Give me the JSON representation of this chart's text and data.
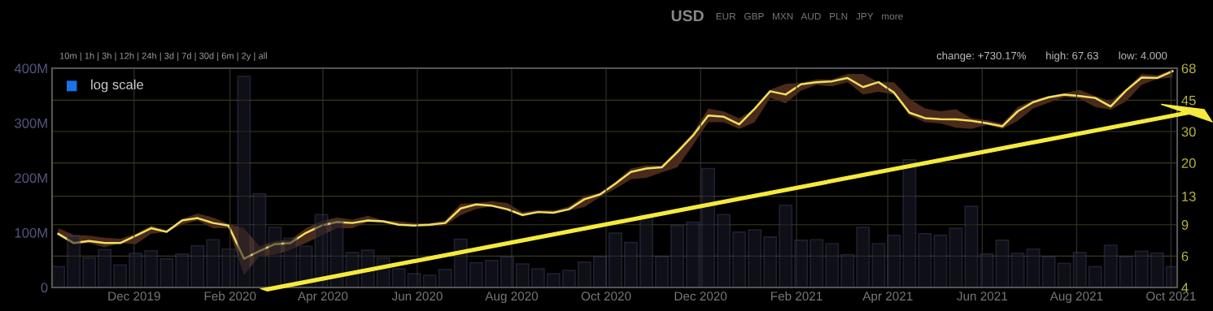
{
  "chart_data": {
    "type": "bar",
    "x": [
      "2019-10-13",
      "2019-10-23",
      "2019-11-02",
      "2019-11-12",
      "2019-11-22",
      "2019-12-02",
      "2019-12-12",
      "2019-12-22",
      "2020-01-01",
      "2020-01-11",
      "2020-01-21",
      "2020-01-31",
      "2020-02-10",
      "2020-02-20",
      "2020-03-01",
      "2020-03-11",
      "2020-03-21",
      "2020-03-31",
      "2020-04-10",
      "2020-04-20",
      "2020-04-30",
      "2020-05-10",
      "2020-05-20",
      "2020-05-30",
      "2020-06-09",
      "2020-06-19",
      "2020-06-29",
      "2020-07-09",
      "2020-07-19",
      "2020-07-29",
      "2020-08-08",
      "2020-08-18",
      "2020-08-28",
      "2020-09-07",
      "2020-09-17",
      "2020-09-27",
      "2020-10-07",
      "2020-10-17",
      "2020-10-27",
      "2020-11-06",
      "2020-11-16",
      "2020-11-26",
      "2020-12-06",
      "2020-12-16",
      "2020-12-26",
      "2021-01-05",
      "2021-01-15",
      "2021-01-25",
      "2021-02-04",
      "2021-02-14",
      "2021-02-24",
      "2021-03-06",
      "2021-03-16",
      "2021-03-26",
      "2021-04-05",
      "2021-04-15",
      "2021-04-25",
      "2021-05-05",
      "2021-05-15",
      "2021-05-25",
      "2021-06-04",
      "2021-06-14",
      "2021-06-24",
      "2021-07-04",
      "2021-07-14",
      "2021-07-24",
      "2021-08-03",
      "2021-08-13",
      "2021-08-23",
      "2021-09-02",
      "2021-09-12",
      "2021-09-22",
      "2021-10-02"
    ],
    "series": [
      {
        "color": "#1c1c2c",
        "values": [
          38,
          94,
          54,
          69,
          41,
          62,
          67,
          52,
          61,
          76,
          87,
          70,
          385,
          171,
          110,
          90,
          75,
          133,
          121,
          64,
          68,
          54,
          34,
          25,
          22,
          33,
          88,
          45,
          49,
          56,
          43,
          34,
          25,
          31,
          46,
          56,
          99,
          82,
          133,
          56,
          113,
          119,
          217,
          133,
          101,
          105,
          92,
          150,
          86,
          87,
          80,
          60,
          110,
          80,
          95,
          233,
          98,
          95,
          108,
          148,
          61,
          86,
          62,
          70,
          56,
          44,
          64,
          38,
          77,
          56,
          66,
          63,
          38
        ]
      },
      {
        "type": "line",
        "axis": "y2",
        "color": "#f0e060",
        "values": [
          8.0,
          7.1,
          7.3,
          7.1,
          7.1,
          7.8,
          8.6,
          8.2,
          9.5,
          9.8,
          9.2,
          8.9,
          5.8,
          6.4,
          7.0,
          7.1,
          8.1,
          8.9,
          9.3,
          9.2,
          9.5,
          9.4,
          9.0,
          8.9,
          9.0,
          9.2,
          11.1,
          11.7,
          11.5,
          11.0,
          10.2,
          10.6,
          10.5,
          11.0,
          12.5,
          13.3,
          15.3,
          17.8,
          18.6,
          18.9,
          23.0,
          28.4,
          36.9,
          36.3,
          32.9,
          40.3,
          50.5,
          48.4,
          55.3,
          56.8,
          57.4,
          59.9,
          53.3,
          56.8,
          49.6,
          38.3,
          35.7,
          35.2,
          35.1,
          34.5,
          33.4,
          32.1,
          39.0,
          43.9,
          46.7,
          48.3,
          47.5,
          46.3,
          41.5,
          51.0,
          60.3,
          59.9,
          65.5
        ],
        "upper": [
          8.6,
          7.9,
          7.8,
          7.6,
          7.5,
          8.0,
          8.9,
          8.4,
          9.7,
          10.4,
          9.9,
          9.1,
          8.6,
          6.8,
          7.3,
          7.4,
          8.6,
          9.4,
          9.9,
          9.6,
          10.1,
          9.5,
          9.4,
          9.2,
          9.2,
          9.5,
          11.8,
          11.9,
          12.2,
          11.9,
          10.6,
          10.9,
          10.8,
          11.4,
          13.1,
          13.6,
          15.7,
          18.6,
          19.4,
          19.3,
          23.8,
          29.4,
          40.3,
          38.9,
          35.6,
          40.3,
          51.5,
          55.6,
          56.3,
          58.8,
          58.8,
          63.2,
          63.2,
          56.8,
          56.8,
          45.9,
          40.5,
          39.0,
          40.0,
          35.7,
          34.7,
          33.3,
          41.2,
          45.1,
          47.5,
          49.2,
          51.4,
          47.5,
          44.3,
          52.0,
          63.2,
          62.1,
          66.7
        ],
        "lower": [
          7.9,
          7.0,
          7.1,
          6.7,
          7.1,
          7.0,
          8.0,
          8.2,
          9.0,
          9.5,
          8.6,
          8.6,
          4.7,
          6.0,
          6.1,
          6.5,
          7.1,
          7.8,
          8.6,
          8.6,
          9.3,
          9.2,
          8.9,
          8.9,
          8.8,
          8.9,
          10.2,
          11.0,
          11.4,
          10.8,
          10.0,
          10.5,
          10.4,
          10.8,
          11.3,
          12.9,
          14.3,
          16.2,
          16.5,
          17.7,
          18.9,
          25.1,
          33.8,
          33.8,
          31.0,
          33.8,
          46.4,
          43.2,
          50.9,
          54.8,
          53.8,
          56.8,
          48.3,
          50.1,
          48.3,
          37.0,
          33.8,
          33.3,
          31.5,
          31.0,
          32.7,
          31.0,
          34.5,
          40.5,
          43.5,
          46.7,
          45.9,
          41.2,
          39.7,
          44.3,
          54.8,
          59.2,
          60.3
        ]
      }
    ],
    "xlim": [
      "2019-10-09",
      "2021-10-05"
    ],
    "xticks": [
      {
        "value": "2019-12-01",
        "label": "Dec 2019"
      },
      {
        "value": "2020-02-01",
        "label": "Feb 2020"
      },
      {
        "value": "2020-04-01",
        "label": "Apr 2020"
      },
      {
        "value": "2020-06-01",
        "label": "Jun 2020"
      },
      {
        "value": "2020-08-01",
        "label": "Aug 2020"
      },
      {
        "value": "2020-10-01",
        "label": "Oct 2020"
      },
      {
        "value": "2020-12-01",
        "label": "Dec 2020"
      },
      {
        "value": "2021-02-01",
        "label": "Feb 2021"
      },
      {
        "value": "2021-04-01",
        "label": "Apr 2021"
      },
      {
        "value": "2021-06-01",
        "label": "Jun 2021"
      },
      {
        "value": "2021-08-01",
        "label": "Aug 2021"
      },
      {
        "value": "2021-10-01",
        "label": "Oct 2021"
      }
    ],
    "ylim": [
      0,
      400
    ],
    "yticks": [
      0,
      {
        "value": 100,
        "label": "100M"
      },
      {
        "value": 200,
        "label": "200M"
      },
      {
        "value": 300,
        "label": "300M"
      },
      {
        "value": 400,
        "label": "400M"
      }
    ],
    "y2lim": [
      4,
      68
    ],
    "y2ticks": [
      4,
      6,
      9,
      13,
      20,
      30,
      45,
      68
    ],
    "log": "y2",
    "grid": true,
    "annotations": [
      "USD",
      "EUR   GBP   MXN   AUD   PLN   JPY   more",
      "10m | 1h | 3h | 12h | 24h | 3d | 7d | 30d | 6m | 2y | all",
      "log scale",
      "change: +730.17%",
      "high: 67.63",
      "low: 4.000"
    ]
  }
}
